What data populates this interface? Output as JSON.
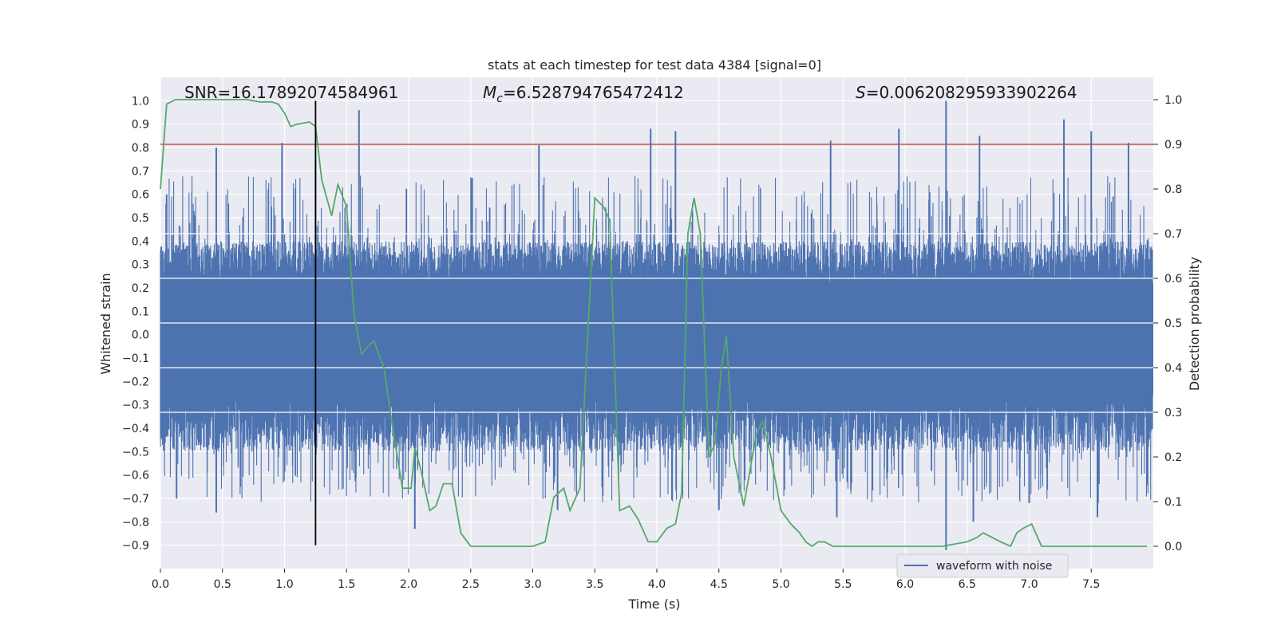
{
  "chart_data": {
    "type": "line",
    "title": "stats at each timestep for test data 4384 [signal=0]",
    "xlabel": "Time (s)",
    "ylabel_left": "Whitened strain",
    "ylabel_right": "Detection probability",
    "xlim": [
      0.0,
      8.0
    ],
    "ylim_left": [
      -1.0,
      1.1
    ],
    "ylim_right": [
      -0.05,
      1.05
    ],
    "x_ticks": [
      0.0,
      0.5,
      1.0,
      1.5,
      2.0,
      2.5,
      3.0,
      3.5,
      4.0,
      4.5,
      5.0,
      5.5,
      6.0,
      6.5,
      7.0,
      7.5
    ],
    "x_tick_labels": [
      "0.0",
      "0.5",
      "1.0",
      "1.5",
      "2.0",
      "2.5",
      "3.0",
      "3.5",
      "4.0",
      "4.5",
      "5.0",
      "5.5",
      "6.0",
      "6.5",
      "7.0",
      "7.5"
    ],
    "y_left_ticks": [
      1.0,
      0.9,
      0.8,
      0.7,
      0.6,
      0.5,
      0.4,
      0.3,
      0.2,
      0.1,
      0.0,
      -0.1,
      -0.2,
      -0.3,
      -0.4,
      -0.5,
      -0.6,
      -0.7,
      -0.8,
      -0.9
    ],
    "y_left_tick_labels": [
      "1.0",
      "0.9",
      "0.8",
      "0.7",
      "0.6",
      "0.5",
      "0.4",
      "0.3",
      "0.2",
      "0.1",
      "0.0",
      "−0.1",
      "−0.2",
      "−0.3",
      "−0.4",
      "−0.5",
      "−0.6",
      "−0.7",
      "−0.8",
      "−0.9"
    ],
    "y_right_ticks": [
      1.0,
      0.9,
      0.8,
      0.7,
      0.6,
      0.5,
      0.4,
      0.3,
      0.2,
      0.1,
      0.0
    ],
    "y_right_tick_labels": [
      "1.0",
      "0.9",
      "0.8",
      "0.7",
      "0.6",
      "0.5",
      "0.4",
      "0.3",
      "0.2",
      "0.1",
      "0.0"
    ],
    "grid": true,
    "background_color": "#eaeaf2",
    "annotations": {
      "snr_prefix": "SNR=",
      "snr_value": "16.17892074584961",
      "mc_symbol": "M",
      "mc_subscript": "c",
      "mc_value": "=6.528794765472412",
      "s_symbol": "S",
      "s_value": "=0.006208295933902264"
    },
    "legend": {
      "placement": "lower-right",
      "entries": [
        "waveform with noise"
      ]
    },
    "waveform": {
      "name": "waveform with noise",
      "color": "#4c72b0",
      "axis": "left",
      "envelope_upper": 0.4,
      "envelope_lower": -0.5,
      "peaks": [
        {
          "x": 0.05,
          "y": 0.6
        },
        {
          "x": 0.45,
          "y": 0.8
        },
        {
          "x": 0.98,
          "y": 0.82
        },
        {
          "x": 1.25,
          "y": 0.75
        },
        {
          "x": 1.6,
          "y": 0.96
        },
        {
          "x": 3.05,
          "y": 0.81
        },
        {
          "x": 3.95,
          "y": 0.88
        },
        {
          "x": 4.15,
          "y": 0.87
        },
        {
          "x": 5.4,
          "y": 0.83
        },
        {
          "x": 5.95,
          "y": 0.88
        },
        {
          "x": 6.33,
          "y": 1.0
        },
        {
          "x": 6.6,
          "y": 0.85
        },
        {
          "x": 7.28,
          "y": 0.92
        },
        {
          "x": 7.5,
          "y": 0.87
        },
        {
          "x": 7.8,
          "y": 0.82
        }
      ],
      "troughs": [
        {
          "x": 0.13,
          "y": -0.7
        },
        {
          "x": 0.45,
          "y": -0.76
        },
        {
          "x": 2.05,
          "y": -0.83
        },
        {
          "x": 3.2,
          "y": -0.75
        },
        {
          "x": 4.5,
          "y": -0.75
        },
        {
          "x": 5.45,
          "y": -0.78
        },
        {
          "x": 6.33,
          "y": -0.92
        },
        {
          "x": 6.55,
          "y": -0.8
        },
        {
          "x": 7.55,
          "y": -0.78
        },
        {
          "x": 7.0,
          "y": -0.72
        }
      ]
    },
    "detection_probability": {
      "color": "#55a868",
      "axis": "right",
      "x": [
        0.0,
        0.05,
        0.12,
        0.2,
        0.3,
        0.4,
        0.5,
        0.6,
        0.7,
        0.8,
        0.9,
        0.95,
        1.0,
        1.05,
        1.1,
        1.2,
        1.25,
        1.3,
        1.38,
        1.43,
        1.5,
        1.56,
        1.62,
        1.68,
        1.72,
        1.8,
        1.88,
        1.95,
        2.02,
        2.05,
        2.1,
        2.17,
        2.22,
        2.28,
        2.35,
        2.42,
        2.5,
        2.6,
        2.8,
        3.0,
        3.1,
        3.17,
        3.25,
        3.3,
        3.38,
        3.5,
        3.57,
        3.62,
        3.7,
        3.78,
        3.85,
        3.93,
        4.0,
        4.08,
        4.15,
        4.2,
        4.25,
        4.3,
        4.35,
        4.42,
        4.47,
        4.52,
        4.56,
        4.62,
        4.7,
        4.8,
        4.85,
        4.92,
        5.0,
        5.08,
        5.15,
        5.2,
        5.25,
        5.3,
        5.35,
        5.42,
        5.5,
        5.6,
        6.0,
        6.3,
        6.5,
        6.58,
        6.63,
        6.7,
        6.77,
        6.85,
        6.9,
        6.95,
        7.02,
        7.1,
        7.2,
        7.3,
        7.5,
        7.7,
        7.8,
        7.86,
        7.95
      ],
      "y": [
        0.8,
        0.99,
        1.0,
        1.0,
        1.0,
        1.0,
        1.0,
        1.0,
        1.0,
        0.995,
        0.995,
        0.99,
        0.97,
        0.94,
        0.945,
        0.95,
        0.94,
        0.82,
        0.74,
        0.81,
        0.76,
        0.52,
        0.43,
        0.45,
        0.46,
        0.4,
        0.25,
        0.13,
        0.13,
        0.22,
        0.17,
        0.08,
        0.09,
        0.14,
        0.14,
        0.03,
        0.0,
        0.0,
        0.0,
        0.0,
        0.01,
        0.11,
        0.13,
        0.08,
        0.13,
        0.78,
        0.76,
        0.73,
        0.08,
        0.09,
        0.06,
        0.01,
        0.01,
        0.04,
        0.05,
        0.12,
        0.7,
        0.78,
        0.7,
        0.2,
        0.23,
        0.4,
        0.47,
        0.2,
        0.09,
        0.25,
        0.28,
        0.2,
        0.08,
        0.05,
        0.03,
        0.01,
        0.0,
        0.01,
        0.01,
        0.0,
        0.0,
        0.0,
        0.0,
        0.0,
        0.01,
        0.02,
        0.03,
        0.02,
        0.01,
        0.0,
        0.03,
        0.04,
        0.05,
        0.0,
        0.0,
        0.0,
        0.0,
        0.0,
        0.0,
        0.0,
        0.0
      ]
    },
    "threshold_line": {
      "y": 0.9,
      "axis": "right",
      "color": "#c44e52"
    },
    "vertical_marker": {
      "x": 1.25,
      "y_top": 1.0,
      "y_bottom": -0.9,
      "axis": "left",
      "color": "#000000"
    }
  }
}
